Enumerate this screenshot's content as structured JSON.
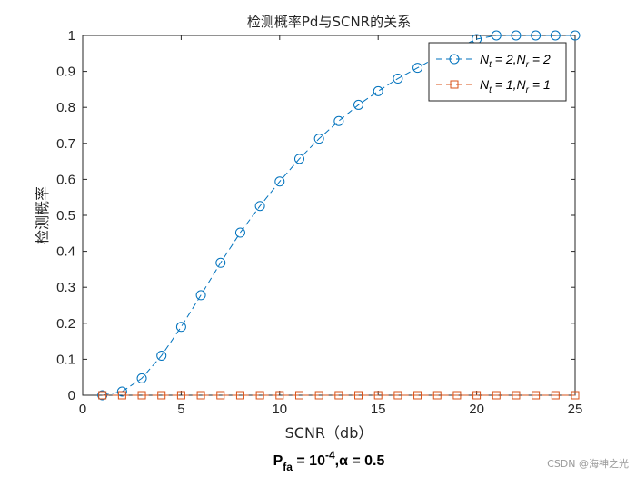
{
  "chart_data": {
    "type": "line",
    "title": "检测概率Pd与SCNR的关系",
    "xlabel": "SCNR（db）",
    "ylabel": "检测概率",
    "xlim": [
      0,
      25
    ],
    "ylim": [
      0,
      1
    ],
    "xticks": [
      0,
      5,
      10,
      15,
      20,
      25
    ],
    "yticks": [
      0,
      0.1,
      0.2,
      0.3,
      0.4,
      0.5,
      0.6,
      0.7,
      0.8,
      0.9,
      1
    ],
    "xtick_labels": [
      "0",
      "5",
      "10",
      "15",
      "20",
      "25"
    ],
    "ytick_labels": [
      "0",
      "0.1",
      "0.2",
      "0.3",
      "0.4",
      "0.5",
      "0.6",
      "0.7",
      "0.8",
      "0.9",
      "1"
    ],
    "grid": false,
    "legend_position": "top-right",
    "x": [
      1,
      2,
      3,
      4,
      5,
      6,
      7,
      8,
      9,
      10,
      11,
      12,
      13,
      14,
      15,
      16,
      17,
      18,
      19,
      20,
      21,
      22,
      23,
      24,
      25
    ],
    "series": [
      {
        "name": "N_t = 2,N_r = 2",
        "legend_main": [
          "N",
          " = 2,N",
          " = 2"
        ],
        "legend_sub": [
          "t",
          "r"
        ],
        "color": "#0072BD",
        "marker": "circle",
        "line_style": "dashed",
        "values": [
          0.0,
          0.01,
          0.047,
          0.11,
          0.19,
          0.278,
          0.368,
          0.452,
          0.526,
          0.594,
          0.657,
          0.713,
          0.762,
          0.807,
          0.845,
          0.88,
          0.91,
          0.94,
          0.965,
          0.99,
          1.0,
          1.0,
          1.0,
          1.0,
          1.0
        ]
      },
      {
        "name": "N_t = 1,N_r = 1",
        "legend_main": [
          "N",
          " = 1,N",
          " = 1"
        ],
        "legend_sub": [
          "t",
          "r"
        ],
        "color": "#D95319",
        "marker": "square",
        "line_style": "dashed",
        "values": [
          0,
          0,
          0,
          0,
          0,
          0,
          0,
          0,
          0,
          0,
          0,
          0,
          0,
          0,
          0,
          0,
          0,
          0,
          0,
          0,
          0,
          0,
          0,
          0,
          0
        ]
      }
    ],
    "bottom_note": {
      "p": "P",
      "fa": "fa",
      "eq": " = 10",
      "exp": "-4",
      "alpha_part": ",α = 0.5"
    }
  },
  "watermark": "CSDN @海神之光"
}
